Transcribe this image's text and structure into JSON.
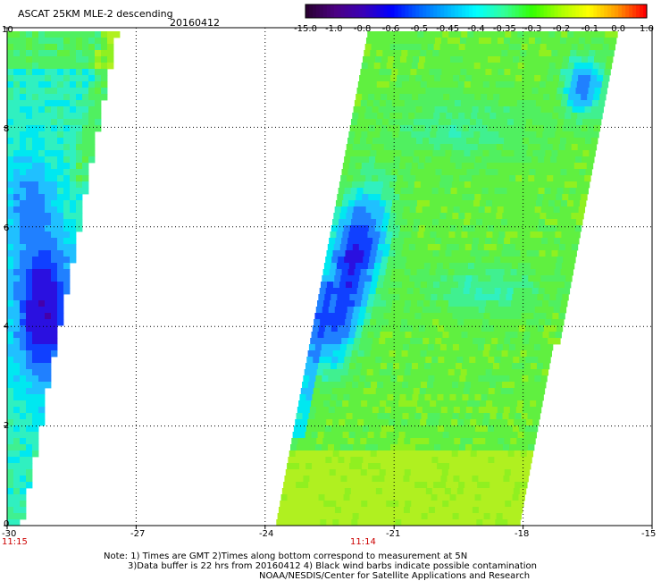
{
  "header": {
    "title": "ASCAT 25KM MLE-2 descending",
    "date": "20160412"
  },
  "colorbar": {
    "labels": [
      "-15.0",
      "-1.0",
      "-0.8",
      "-0.6",
      "-0.5",
      "-0.45",
      "-0.4",
      "-0.35",
      "-0.3",
      "-0.2",
      "-0.1",
      "0.0",
      "1.0"
    ],
    "colors": [
      "#2a0033",
      "#4b0082",
      "#3a00b8",
      "#0000ff",
      "#0066ff",
      "#00b4ff",
      "#00ffff",
      "#33ff99",
      "#33ff00",
      "#aaff00",
      "#ffff00",
      "#ff9900",
      "#ff0000"
    ]
  },
  "axes": {
    "x_ticks": [
      "-30",
      "-27",
      "-24",
      "-21",
      "-18",
      "-15"
    ],
    "y_ticks": [
      "0",
      "2",
      "4",
      "6",
      "8",
      "10"
    ],
    "x_range": [
      -30,
      -15
    ],
    "y_range": [
      0,
      10
    ],
    "grid": "dotted"
  },
  "times": [
    "11:15",
    "11:14"
  ],
  "notes": {
    "line1": "Note: 1) Times are GMT 2)Times along bottom correspond to measurement at 5N",
    "line2": "3)Data buffer is 22 hrs from 20160412 4) Black wind barbs indicate possible contamination",
    "line3": "NOAA/NESDIS/Center for Satellite Applications and Research"
  },
  "swaths": {
    "west": {
      "cells_with_data": "lon -30 to -27.5, lat 0 to 10",
      "dominant_values": "-0.45 to -0.8 (cyan/blue), minimum near -1.0 at lat 4.5"
    },
    "east": {
      "cells_with_data": "lon -24 to -16.5, lat 0 to 10",
      "dominant_values": "-0.35 to -0.3 (green), blue -0.6 to -0.8 near lon -22, lat 4 to 6.5"
    }
  }
}
